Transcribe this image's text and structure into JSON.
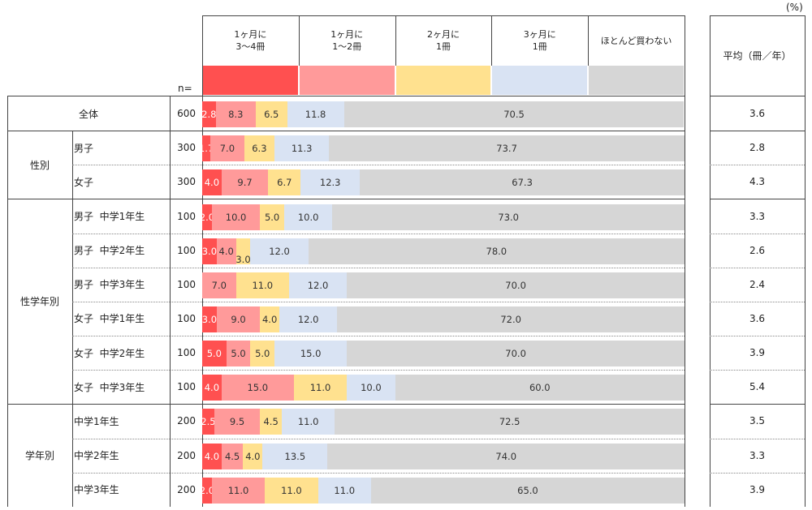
{
  "unit_label": "(%)",
  "n_label": "n=",
  "avg_header": "平均（冊／年）",
  "chart_data": {
    "type": "bar",
    "stacked": true,
    "orientation": "horizontal",
    "normalized": true,
    "categories_header": [
      "1ヶ月に\n3〜4冊",
      "1ヶ月に\n1〜2冊",
      "2ヶ月に\n1冊",
      "3ヶ月に\n1冊",
      "ほとんど買わない"
    ],
    "colors": [
      "#ff5050",
      "#ff9a9a",
      "#ffe18f",
      "#d9e3f3",
      "#d6d6d6"
    ],
    "value_label_colors": [
      "#ffffff",
      "#333333",
      "#333333",
      "#333333",
      "#333333"
    ],
    "groups": [
      {
        "label": "",
        "start": 0,
        "count": 1
      },
      {
        "label": "性別",
        "start": 1,
        "count": 2
      },
      {
        "label": "性学年別",
        "start": 3,
        "count": 6
      },
      {
        "label": "学年別",
        "start": 9,
        "count": 3
      }
    ],
    "rows": [
      {
        "label": "全体",
        "n": 600,
        "values": [
          2.8,
          8.3,
          6.5,
          11.8,
          70.5
        ],
        "display": [
          "2.8",
          "8.3",
          "6.5",
          "11.8",
          "70.5"
        ],
        "avg": "3.6"
      },
      {
        "label": "男子",
        "n": 300,
        "values": [
          1.7,
          7.0,
          6.3,
          11.3,
          73.7
        ],
        "display": [
          "1.7",
          "7.0",
          "6.3",
          "11.3",
          "73.7"
        ],
        "avg": "2.8"
      },
      {
        "label": "女子",
        "n": 300,
        "values": [
          4.0,
          9.7,
          6.7,
          12.3,
          67.3
        ],
        "display": [
          "4.0",
          "9.7",
          "6.7",
          "12.3",
          "67.3"
        ],
        "avg": "4.3"
      },
      {
        "label": "男子  中学1年生",
        "n": 100,
        "values": [
          2.0,
          10.0,
          5.0,
          10.0,
          73.0
        ],
        "display": [
          "2.0",
          "10.0",
          "5.0",
          "10.0",
          "73.0"
        ],
        "avg": "3.3"
      },
      {
        "label": "男子  中学2年生",
        "n": 100,
        "values": [
          3.0,
          4.0,
          3.0,
          12.0,
          78.0
        ],
        "display": [
          "3.0",
          "4.0",
          "3.0",
          "12.0",
          "78.0"
        ],
        "avg": "2.6"
      },
      {
        "label": "男子  中学3年生",
        "n": 100,
        "values": [
          0,
          7.0,
          11.0,
          12.0,
          70.0
        ],
        "display": [
          "",
          "7.0",
          "11.0",
          "12.0",
          "70.0"
        ],
        "avg": "2.4"
      },
      {
        "label": "女子  中学1年生",
        "n": 100,
        "values": [
          3.0,
          9.0,
          4.0,
          12.0,
          72.0
        ],
        "display": [
          "3.0",
          "9.0",
          "4.0",
          "12.0",
          "72.0"
        ],
        "avg": "3.6"
      },
      {
        "label": "女子  中学2年生",
        "n": 100,
        "values": [
          5.0,
          5.0,
          5.0,
          15.0,
          70.0
        ],
        "display": [
          "5.0",
          "5.0",
          "5.0",
          "15.0",
          "70.0"
        ],
        "avg": "3.9"
      },
      {
        "label": "女子  中学3年生",
        "n": 100,
        "values": [
          4.0,
          15.0,
          11.0,
          10.0,
          60.0
        ],
        "display": [
          "4.0",
          "15.0",
          "11.0",
          "10.0",
          "60.0"
        ],
        "avg": "5.4"
      },
      {
        "label": "中学1年生",
        "n": 200,
        "values": [
          2.5,
          9.5,
          4.5,
          11.0,
          72.5
        ],
        "display": [
          "2.5",
          "9.5",
          "4.5",
          "11.0",
          "72.5"
        ],
        "avg": "3.5"
      },
      {
        "label": "中学2年生",
        "n": 200,
        "values": [
          4.0,
          4.5,
          4.0,
          13.5,
          74.0
        ],
        "display": [
          "4.0",
          "4.5",
          "4.0",
          "13.5",
          "74.0"
        ],
        "avg": "3.3"
      },
      {
        "label": "中学3年生",
        "n": 200,
        "values": [
          2.0,
          11.0,
          11.0,
          11.0,
          65.0
        ],
        "display": [
          "2.0",
          "11.0",
          "11.0",
          "11.0",
          "65.0"
        ],
        "avg": "3.9"
      }
    ]
  }
}
